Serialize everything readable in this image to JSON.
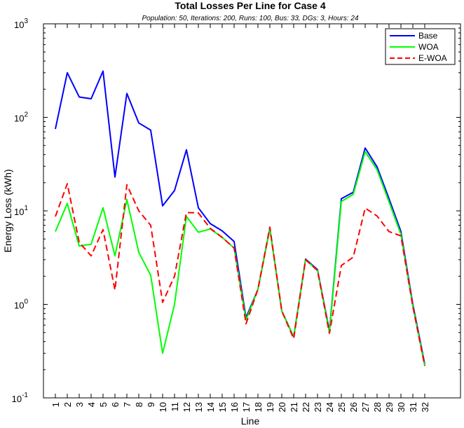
{
  "chart_data": {
    "type": "line",
    "title": "Total Losses Per Line for Case 4",
    "subtitle": "Population: 50, Iterations: 200, Runs: 100, Bus: 33, DGs: 3, Hours: 24",
    "xlabel": "Line",
    "ylabel": "Energy Loss (kWh)",
    "yscale": "log",
    "ylim": [
      0.1,
      1000
    ],
    "xlim": [
      0,
      35
    ],
    "grid": false,
    "legend_position": "top-right",
    "yticks": [
      {
        "base": "10",
        "exp": "-1",
        "value": 0.1
      },
      {
        "base": "10",
        "exp": "0",
        "value": 1
      },
      {
        "base": "10",
        "exp": "1",
        "value": 10
      },
      {
        "base": "10",
        "exp": "2",
        "value": 100
      },
      {
        "base": "10",
        "exp": "3",
        "value": 1000
      }
    ],
    "x": [
      1,
      2,
      3,
      4,
      5,
      6,
      7,
      8,
      9,
      10,
      11,
      12,
      13,
      14,
      15,
      16,
      17,
      18,
      19,
      20,
      21,
      22,
      23,
      24,
      25,
      26,
      27,
      28,
      29,
      30,
      31,
      32
    ],
    "series": [
      {
        "name": "Base",
        "color": "#0000ff",
        "style": "solid",
        "values": [
          75,
          300,
          165,
          158,
          312,
          23,
          180,
          87,
          73,
          11.3,
          16.5,
          45,
          10.8,
          7.3,
          6.1,
          4.7,
          0.72,
          1.45,
          6.5,
          0.85,
          0.45,
          3.05,
          2.35,
          0.52,
          13.5,
          15.8,
          47,
          29.5,
          13.5,
          6.0,
          1.0,
          0.23
        ]
      },
      {
        "name": "WOA",
        "color": "#00ff00",
        "style": "solid",
        "values": [
          6.0,
          12.0,
          4.2,
          4.4,
          10.8,
          3.3,
          13.2,
          3.6,
          2.05,
          0.3,
          1.0,
          8.7,
          5.9,
          6.4,
          5.2,
          4.0,
          0.68,
          1.45,
          6.4,
          0.85,
          0.45,
          3.0,
          2.3,
          0.5,
          12.6,
          15.0,
          43,
          27.5,
          12.5,
          5.6,
          0.95,
          0.22
        ]
      },
      {
        "name": "E-WOA",
        "color": "#ff0000",
        "style": "dashed",
        "values": [
          8.7,
          19.5,
          4.6,
          3.3,
          6.3,
          1.42,
          19.0,
          10.0,
          7.0,
          1.05,
          2.0,
          9.6,
          9.5,
          6.5,
          5.2,
          4.0,
          0.62,
          1.45,
          6.7,
          0.85,
          0.43,
          3.0,
          2.3,
          0.49,
          2.6,
          3.2,
          10.7,
          8.8,
          6.0,
          5.4,
          0.95,
          0.22
        ]
      }
    ]
  }
}
